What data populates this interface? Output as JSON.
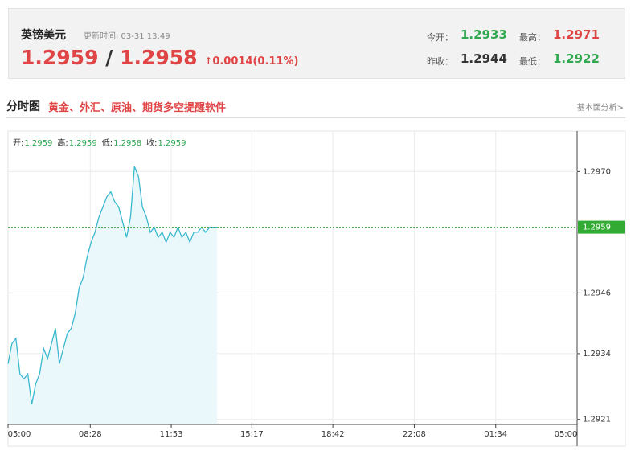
{
  "header": {
    "title": "英镑美元",
    "update_label": "更新时间: 03-31 13:49",
    "price": "1.2959",
    "separator": "/",
    "price2": "1.2958",
    "change": "0.0014(0.11%)",
    "stats": [
      {
        "label": "今开：",
        "value": "1.2933"
      },
      {
        "label": "最高：",
        "value": "1.2971"
      },
      {
        "label": "昨收：",
        "value": "1.2944"
      },
      {
        "label": "最低：",
        "value": "1.2922"
      }
    ]
  },
  "section": {
    "title": "分时图",
    "promo": "黄金、外汇、原油、期货多空提醒软件",
    "link": "基本面分析>"
  },
  "chart_data": {
    "type": "line",
    "color": "#3bb9cf",
    "fill": "#eaf7fb",
    "ohlc": [
      {
        "label": "开:",
        "value": "1.2959"
      },
      {
        "label": "高:",
        "value": "1.2959"
      },
      {
        "label": "低:",
        "value": "1.2958"
      },
      {
        "label": "收:",
        "value": "1.2959"
      }
    ],
    "x": [
      "05:00",
      "05:10",
      "05:20",
      "05:30",
      "05:40",
      "05:50",
      "06:00",
      "06:10",
      "06:20",
      "06:30",
      "06:40",
      "06:50",
      "07:00",
      "07:10",
      "07:20",
      "07:30",
      "07:40",
      "07:50",
      "08:00",
      "08:10",
      "08:20",
      "08:30",
      "08:40",
      "08:50",
      "09:00",
      "09:10",
      "09:20",
      "09:30",
      "09:40",
      "09:50",
      "10:00",
      "10:10",
      "10:20",
      "10:30",
      "10:40",
      "10:50",
      "11:00",
      "11:10",
      "11:20",
      "11:30",
      "11:40",
      "11:50",
      "12:00",
      "12:10",
      "12:20",
      "12:30",
      "12:40",
      "12:50",
      "13:00",
      "13:10",
      "13:20",
      "13:30",
      "13:49"
    ],
    "values": [
      1.2932,
      1.2936,
      1.2937,
      1.293,
      1.2929,
      1.293,
      1.2924,
      1.2928,
      1.293,
      1.2935,
      1.2933,
      1.2936,
      1.2939,
      1.2932,
      1.2935,
      1.2938,
      1.2939,
      1.2942,
      1.2947,
      1.2949,
      1.2953,
      1.2956,
      1.2958,
      1.2961,
      1.2963,
      1.2965,
      1.2966,
      1.2964,
      1.2963,
      1.296,
      1.2957,
      1.2961,
      1.2971,
      1.2969,
      1.2963,
      1.2961,
      1.2958,
      1.2959,
      1.2957,
      1.2958,
      1.2956,
      1.2958,
      1.2957,
      1.2959,
      1.2957,
      1.2958,
      1.2956,
      1.2958,
      1.2958,
      1.2959,
      1.2958,
      1.2959,
      1.2959
    ],
    "current": 1.2959,
    "current_color": "#33aa33",
    "ylim": [
      1.292,
      1.2978
    ],
    "yticks": [
      {
        "value": 1.297,
        "label": "1.2970"
      },
      1.2946,
      1.2934,
      1.2921
    ],
    "xticks": [
      "05:00",
      "08:28",
      "11:53",
      "15:17",
      "18:42",
      "22:08",
      "01:34",
      "05:00"
    ],
    "grid": true
  }
}
